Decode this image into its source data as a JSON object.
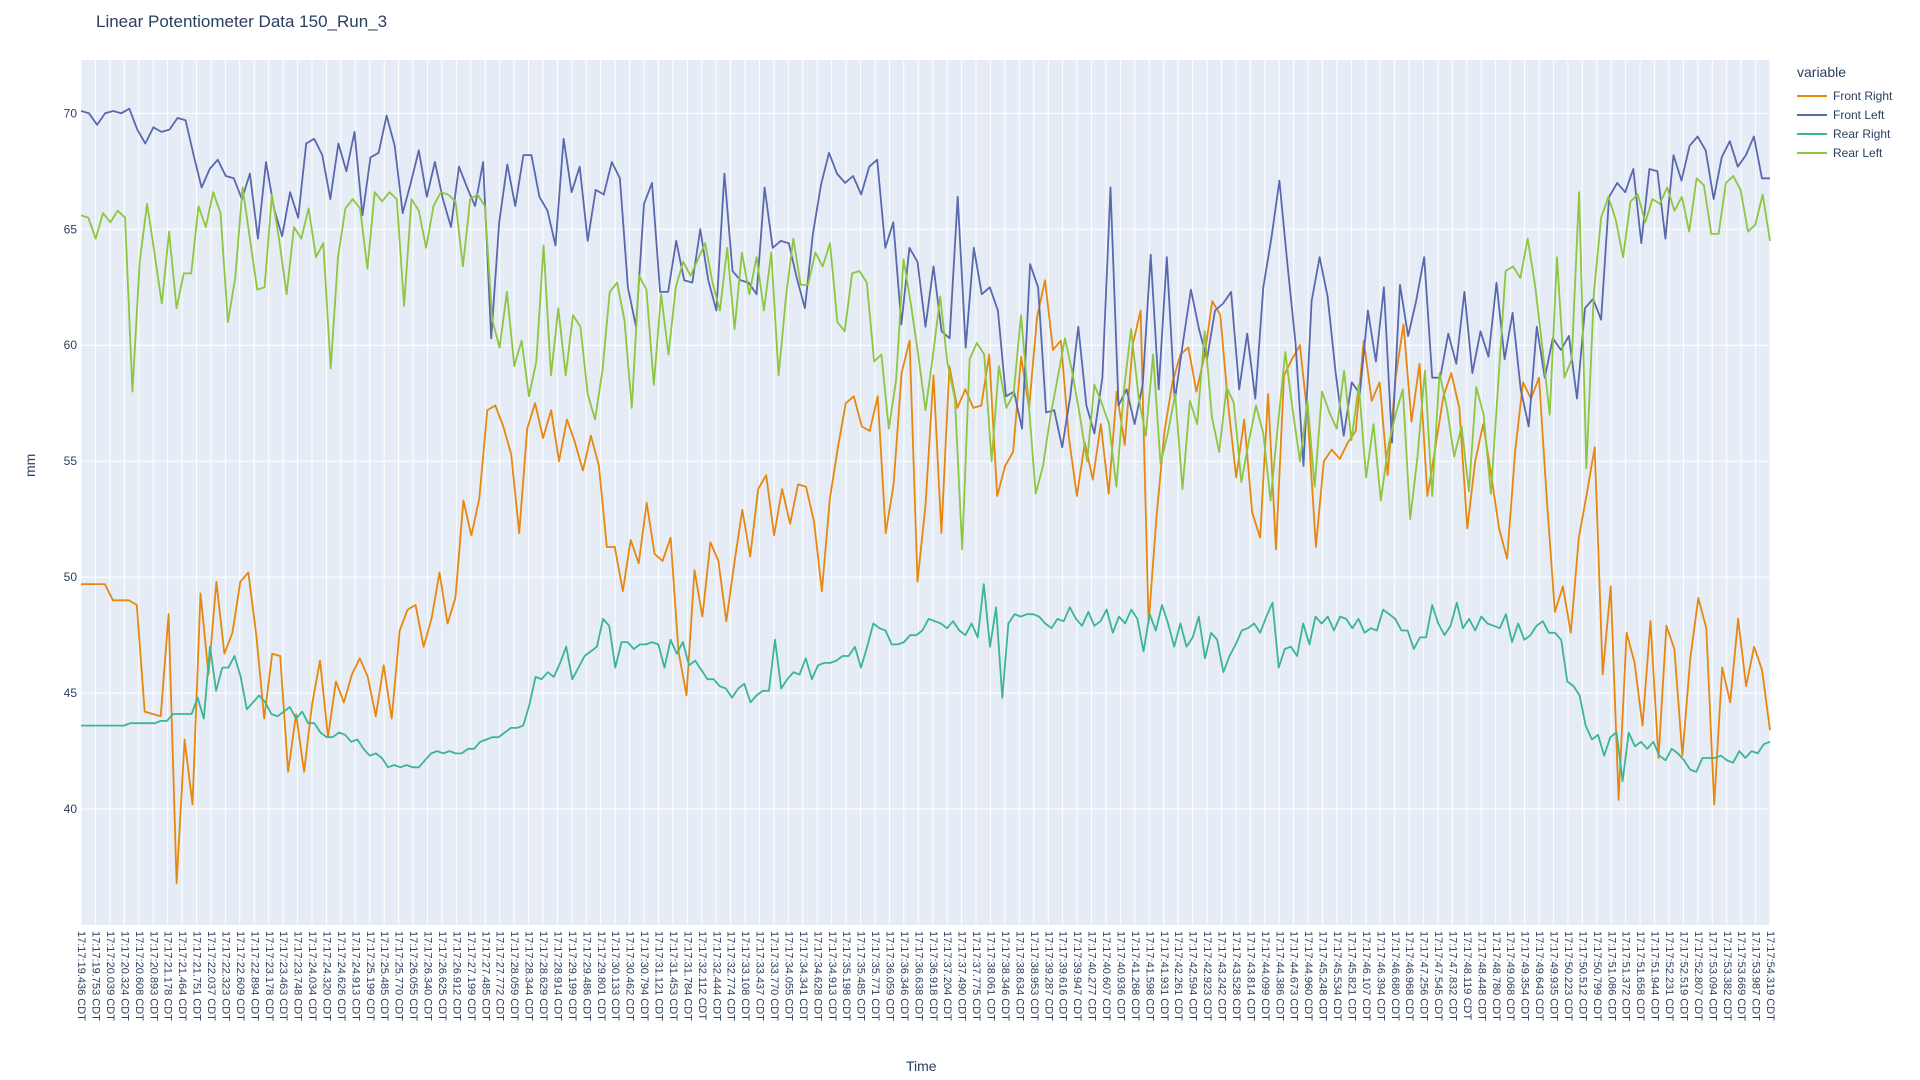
{
  "chart_data": {
    "type": "line",
    "title": "Linear Potentiometer Data 150_Run_3",
    "xlabel": "Time",
    "ylabel": "mm",
    "ylim": [
      35,
      72.3
    ],
    "yticks": [
      40,
      45,
      50,
      55,
      60,
      65,
      70
    ],
    "grid": true,
    "legend": {
      "title": "variable",
      "placement": "top-right, outside plot"
    },
    "x_tick_labels": [
      "17:17:19.436 CDT",
      "17:17:19.753 CDT",
      "17:17:20.039 CDT",
      "17:17:20.324 CDT",
      "17:17:20.608 CDT",
      "17:17:20.893 CDT",
      "17:17:21.178 CDT",
      "17:17:21.464 CDT",
      "17:17:21.751 CDT",
      "17:17:22.037 CDT",
      "17:17:22.323 CDT",
      "17:17:22.609 CDT",
      "17:17:22.894 CDT",
      "17:17:23.178 CDT",
      "17:17:23.463 CDT",
      "17:17:23.748 CDT",
      "17:17:24.034 CDT",
      "17:17:24.320 CDT",
      "17:17:24.626 CDT",
      "17:17:24.913 CDT",
      "17:17:25.199 CDT",
      "17:17:25.485 CDT",
      "17:17:25.770 CDT",
      "17:17:26.055 CDT",
      "17:17:26.340 CDT",
      "17:17:26.625 CDT",
      "17:17:26.912 CDT",
      "17:17:27.199 CDT",
      "17:17:27.485 CDT",
      "17:17:27.772 CDT",
      "17:17:28.059 CDT",
      "17:17:28.344 CDT",
      "17:17:28.629 CDT",
      "17:17:28.914 CDT",
      "17:17:29.199 CDT",
      "17:17:29.486 CDT",
      "17:17:29.801 CDT",
      "17:17:30.133 CDT",
      "17:17:30.462 CDT",
      "17:17:30.794 CDT",
      "17:17:31.121 CDT",
      "17:17:31.453 CDT",
      "17:17:31.784 CDT",
      "17:17:32.112 CDT",
      "17:17:32.444 CDT",
      "17:17:32.774 CDT",
      "17:17:33.108 CDT",
      "17:17:33.437 CDT",
      "17:17:33.770 CDT",
      "17:17:34.055 CDT",
      "17:17:34.341 CDT",
      "17:17:34.628 CDT",
      "17:17:34.913 CDT",
      "17:17:35.198 CDT",
      "17:17:35.485 CDT",
      "17:17:35.771 CDT",
      "17:17:36.059 CDT",
      "17:17:36.346 CDT",
      "17:17:36.638 CDT",
      "17:17:36.918 CDT",
      "17:17:37.204 CDT",
      "17:17:37.490 CDT",
      "17:17:37.775 CDT",
      "17:17:38.061 CDT",
      "17:17:38.346 CDT",
      "17:17:38.634 CDT",
      "17:17:38.953 CDT",
      "17:17:39.287 CDT",
      "17:17:39.616 CDT",
      "17:17:39.947 CDT",
      "17:17:40.277 CDT",
      "17:17:40.607 CDT",
      "17:17:40.936 CDT",
      "17:17:41.268 CDT",
      "17:17:41.598 CDT",
      "17:17:41.931 CDT",
      "17:17:42.261 CDT",
      "17:17:42.594 CDT",
      "17:17:42.923 CDT",
      "17:17:43.242 CDT",
      "17:17:43.528 CDT",
      "17:17:43.814 CDT",
      "17:17:44.099 CDT",
      "17:17:44.386 CDT",
      "17:17:44.673 CDT",
      "17:17:44.960 CDT",
      "17:17:45.248 CDT",
      "17:17:45.534 CDT",
      "17:17:45.821 CDT",
      "17:17:46.107 CDT",
      "17:17:46.394 CDT",
      "17:17:46.680 CDT",
      "17:17:46.968 CDT",
      "17:17:47.256 CDT",
      "17:17:47.545 CDT",
      "17:17:47.832 CDT",
      "17:17:48.119 CDT",
      "17:17:48.448 CDT",
      "17:17:48.780 CDT",
      "17:17:49.068 CDT",
      "17:17:49.354 CDT",
      "17:17:49.643 CDT",
      "17:17:49.935 CDT",
      "17:17:50.223 CDT",
      "17:17:50.512 CDT",
      "17:17:50.799 CDT",
      "17:17:51.086 CDT",
      "17:17:51.372 CDT",
      "17:17:51.658 CDT",
      "17:17:51.944 CDT",
      "17:17:52.231 CDT",
      "17:17:52.519 CDT",
      "17:17:52.807 CDT",
      "17:17:53.094 CDT",
      "17:17:53.382 CDT",
      "17:17:53.669 CDT",
      "17:17:53.987 CDT",
      "17:17:54.319 CDT"
    ],
    "series": [
      {
        "name": "Front Right",
        "color": "#e8870e",
        "values": [
          49.7,
          49.7,
          49.7,
          49.7,
          49.0,
          49.0,
          49.0,
          48.8,
          44.2,
          44.1,
          44.0,
          48.4,
          36.8,
          43.0,
          40.2,
          49.3,
          45.8,
          49.8,
          46.7,
          47.6,
          49.8,
          50.2,
          47.5,
          43.9,
          46.7,
          46.6,
          41.6,
          44.1,
          41.6,
          44.5,
          46.4,
          43.1,
          45.5,
          44.6,
          45.8,
          46.5,
          45.7,
          44.0,
          46.2,
          43.9,
          47.7,
          48.6,
          48.8,
          47.0,
          48.2,
          50.2,
          48.0,
          49.1,
          53.3,
          51.8,
          53.4,
          57.2,
          57.4,
          56.5,
          55.3,
          51.9,
          56.4,
          57.5,
          56.0,
          57.2,
          55.0,
          56.8,
          55.8,
          54.6,
          56.1,
          54.8,
          51.3,
          51.3,
          49.4,
          51.6,
          50.6,
          53.2,
          51.0,
          50.7,
          51.7,
          46.8,
          44.9,
          50.3,
          48.3,
          51.5,
          50.7,
          48.1,
          50.6,
          52.9,
          50.9,
          53.8,
          54.4,
          51.8,
          53.8,
          52.3,
          54.0,
          53.9,
          52.4,
          49.4,
          53.4,
          55.6,
          57.5,
          57.8,
          56.5,
          56.3,
          57.8,
          51.9,
          54.0,
          58.8,
          60.2,
          49.8,
          53.1,
          58.7,
          51.9,
          59.1,
          57.3,
          58.1,
          57.3,
          57.4,
          59.6,
          53.5,
          54.8,
          55.4,
          59.5,
          57.3,
          61.2,
          62.8,
          59.8,
          60.2,
          56.0,
          53.5,
          55.8,
          54.2,
          56.6,
          53.6,
          58.0,
          55.7,
          60.0,
          61.5,
          48.0,
          52.6,
          56.3,
          58.4,
          59.6,
          59.9,
          58.0,
          59.5,
          61.9,
          61.3,
          57.4,
          54.3,
          56.8,
          52.8,
          51.7,
          57.9,
          51.2,
          58.7,
          59.4,
          60.0,
          56.8,
          51.3,
          55.0,
          55.5,
          55.1,
          55.8,
          56.3,
          60.2,
          57.6,
          58.4,
          54.4,
          58.6,
          60.9,
          56.7,
          59.2,
          53.5,
          55.6,
          57.8,
          58.8,
          57.3,
          52.1,
          55.0,
          56.6,
          54.4,
          52.1,
          50.8,
          55.4,
          58.4,
          57.7,
          58.6,
          53.3,
          48.5,
          49.6,
          47.6,
          51.7,
          53.6,
          55.6,
          45.8,
          49.6,
          40.4,
          47.6,
          46.3,
          43.6,
          48.1,
          42.2,
          47.9,
          46.9,
          42.3,
          46.5,
          49.1,
          47.8,
          40.2,
          46.1,
          44.6,
          48.2,
          45.3,
          47.0,
          46.0,
          43.4
        ]
      },
      {
        "name": "Front Left",
        "color": "#5a68ad",
        "values": [
          70.1,
          70.0,
          69.5,
          70.0,
          70.1,
          70.0,
          70.2,
          69.3,
          68.7,
          69.4,
          69.2,
          69.3,
          69.8,
          69.7,
          68.2,
          66.8,
          67.6,
          68.0,
          67.3,
          67.2,
          66.3,
          67.4,
          64.6,
          67.9,
          65.9,
          64.7,
          66.6,
          65.5,
          68.7,
          68.9,
          68.2,
          66.3,
          68.7,
          67.5,
          69.2,
          65.6,
          68.1,
          68.3,
          69.9,
          68.6,
          65.7,
          67.0,
          68.4,
          66.4,
          67.9,
          66.3,
          65.1,
          67.7,
          66.8,
          66.0,
          67.9,
          60.3,
          65.3,
          67.8,
          66.0,
          68.2,
          68.2,
          66.4,
          65.8,
          64.3,
          68.9,
          66.6,
          67.7,
          64.5,
          66.7,
          66.5,
          67.9,
          67.2,
          62.5,
          60.8,
          66.1,
          67.0,
          62.3,
          62.3,
          64.5,
          62.8,
          62.7,
          65.0,
          62.8,
          61.5,
          67.4,
          63.2,
          62.8,
          62.7,
          62.2,
          66.8,
          64.2,
          64.5,
          64.4,
          62.9,
          61.6,
          64.8,
          66.9,
          68.3,
          67.4,
          67.0,
          67.3,
          66.5,
          67.7,
          68.0,
          64.2,
          65.3,
          60.9,
          64.2,
          63.6,
          60.8,
          63.4,
          60.6,
          60.3,
          66.4,
          59.9,
          64.2,
          62.2,
          62.5,
          61.5,
          57.8,
          58.0,
          56.4,
          63.5,
          62.5,
          57.1,
          57.2,
          55.6,
          57.8,
          60.8,
          57.4,
          56.2,
          58.6,
          66.8,
          57.4,
          58.1,
          56.6,
          58.3,
          63.9,
          58.1,
          63.8,
          57.6,
          60.1,
          62.4,
          60.7,
          59.4,
          61.5,
          61.8,
          62.3,
          58.1,
          60.5,
          57.7,
          62.5,
          64.6,
          67.1,
          63.5,
          60.1,
          54.8,
          61.9,
          63.8,
          62.1,
          58.8,
          56.1,
          58.4,
          57.9,
          61.5,
          59.3,
          62.5,
          55.8,
          62.6,
          60.4,
          61.9,
          63.8,
          58.6,
          58.6,
          60.5,
          59.2,
          62.3,
          58.8,
          60.6,
          59.5,
          62.7,
          59.4,
          61.4,
          58.1,
          56.5,
          60.8,
          58.6,
          60.3,
          59.8,
          60.4,
          57.7,
          61.6,
          62.0,
          61.1,
          66.4,
          67.0,
          66.6,
          67.6,
          64.4,
          67.6,
          67.5,
          64.6,
          68.2,
          67.1,
          68.6,
          69.0,
          68.4,
          66.3,
          68.1,
          68.8,
          67.7,
          68.2,
          69.0,
          67.2,
          67.2
        ]
      },
      {
        "name": "Rear Right",
        "color": "#3cb595",
        "values": [
          43.6,
          43.6,
          43.6,
          43.6,
          43.6,
          43.6,
          43.6,
          43.6,
          43.7,
          43.7,
          43.7,
          43.7,
          43.7,
          43.8,
          43.8,
          44.1,
          44.1,
          44.1,
          44.1,
          44.8,
          43.9,
          47.0,
          45.1,
          46.1,
          46.1,
          46.6,
          45.7,
          44.3,
          44.6,
          44.9,
          44.6,
          44.1,
          44.0,
          44.2,
          44.4,
          43.9,
          44.2,
          43.7,
          43.7,
          43.3,
          43.1,
          43.1,
          43.3,
          43.2,
          42.9,
          43.0,
          42.6,
          42.3,
          42.4,
          42.2,
          41.8,
          41.9,
          41.8,
          41.9,
          41.8,
          41.8,
          42.1,
          42.4,
          42.5,
          42.4,
          42.5,
          42.4,
          42.4,
          42.6,
          42.6,
          42.9,
          43.0,
          43.1,
          43.1,
          43.3,
          43.5,
          43.5,
          43.6,
          44.5,
          45.7,
          45.6,
          45.9,
          45.7,
          46.3,
          47.0,
          45.6,
          46.1,
          46.6,
          46.8,
          47.0,
          48.2,
          47.9,
          46.1,
          47.2,
          47.2,
          46.9,
          47.1,
          47.1,
          47.2,
          47.1,
          46.1,
          47.3,
          46.7,
          47.2,
          46.2,
          46.4,
          46.0,
          45.6,
          45.6,
          45.3,
          45.2,
          44.8,
          45.2,
          45.4,
          44.6,
          44.9,
          45.1,
          45.1,
          47.3,
          45.2,
          45.6,
          45.9,
          45.8,
          46.5,
          45.6,
          46.2,
          46.3,
          46.3,
          46.4,
          46.6,
          46.6,
          47.0,
          46.1,
          47.0,
          48.0,
          47.8,
          47.7,
          47.1,
          47.1,
          47.2,
          47.5,
          47.5,
          47.7,
          48.2,
          48.1,
          48.0,
          47.8,
          48.1,
          47.7,
          47.5,
          48.0,
          47.4,
          49.7,
          47.0,
          48.7,
          44.8,
          48.0,
          48.4,
          48.3,
          48.4,
          48.4,
          48.3,
          48.0,
          47.8,
          48.2,
          48.1,
          48.7,
          48.2,
          47.9,
          48.5,
          47.9,
          48.1,
          48.6,
          47.6,
          48.3,
          48.0,
          48.6,
          48.2,
          46.8,
          48.4,
          47.7,
          48.8,
          48.0,
          47.0,
          48.0,
          47.0,
          47.4,
          48.3,
          46.5,
          47.6,
          47.3,
          45.9,
          46.6,
          47.1,
          47.7,
          47.8,
          48.0,
          47.6,
          48.3,
          48.9,
          46.1,
          46.9,
          47.0,
          46.6,
          48.0,
          47.1,
          48.3,
          48.0,
          48.3,
          47.7,
          48.3,
          48.2,
          47.8,
          48.2,
          47.6,
          47.8,
          47.7,
          48.6,
          48.4,
          48.2,
          47.7,
          47.7,
          46.9,
          47.4,
          47.4,
          48.8,
          48.0,
          47.5,
          47.9,
          48.9,
          47.8,
          48.2,
          47.7,
          48.3,
          48.0,
          47.9,
          47.8,
          48.4,
          47.2,
          48.0,
          47.3,
          47.5,
          47.9,
          48.1,
          47.6,
          47.6,
          47.3,
          45.5,
          45.3,
          44.9,
          43.6,
          43.0,
          43.2,
          42.3,
          43.1,
          43.3,
          41.2,
          43.3,
          42.7,
          42.9,
          42.6,
          42.9,
          42.3,
          42.1,
          42.6,
          42.4,
          42.1,
          41.7,
          41.6,
          42.2,
          42.2,
          42.2,
          42.3,
          42.1,
          42.0,
          42.5,
          42.2,
          42.5,
          42.4,
          42.8,
          42.9
        ]
      },
      {
        "name": "Rear Left",
        "color": "#8dc63f",
        "values": [
          65.6,
          65.5,
          64.6,
          65.7,
          65.3,
          65.8,
          65.5,
          58.0,
          63.6,
          66.1,
          64.0,
          61.8,
          64.9,
          61.6,
          63.1,
          63.1,
          66.0,
          65.1,
          66.6,
          65.7,
          61.0,
          62.9,
          66.8,
          64.6,
          62.4,
          62.5,
          66.5,
          64.5,
          62.2,
          65.1,
          64.6,
          65.9,
          63.8,
          64.4,
          59.0,
          63.8,
          65.9,
          66.3,
          65.9,
          63.3,
          66.6,
          66.2,
          66.6,
          66.3,
          61.7,
          66.3,
          65.8,
          64.2,
          66.0,
          66.6,
          66.5,
          66.2,
          63.4,
          66.3,
          66.5,
          66.0,
          61.1,
          59.9,
          62.3,
          59.1,
          60.2,
          57.8,
          59.3,
          64.3,
          58.7,
          61.6,
          58.7,
          61.3,
          60.8,
          57.9,
          56.8,
          58.9,
          62.3,
          62.7,
          61.1,
          57.3,
          63.0,
          62.4,
          58.3,
          62.2,
          59.6,
          62.5,
          63.6,
          63.0,
          63.7,
          64.4,
          62.7,
          61.5,
          64.2,
          60.7,
          64.0,
          62.2,
          63.8,
          61.5,
          64.0,
          58.7,
          62.1,
          64.6,
          62.6,
          62.6,
          64.0,
          63.4,
          64.4,
          61.0,
          60.6,
          63.1,
          63.2,
          62.7,
          59.3,
          59.6,
          56.4,
          58.5,
          63.7,
          61.8,
          59.6,
          57.2,
          59.5,
          62.1,
          59.2,
          57.7,
          51.2,
          59.4,
          60.1,
          59.6,
          55.0,
          59.1,
          57.3,
          57.9,
          61.3,
          57.7,
          53.6,
          54.8,
          56.9,
          58.6,
          60.3,
          58.8,
          57.0,
          55.0,
          58.3,
          57.5,
          56.6,
          53.9,
          58.0,
          60.7,
          57.8,
          56.1,
          59.6,
          54.9,
          56.2,
          57.9,
          53.8,
          57.6,
          56.6,
          60.6,
          56.9,
          55.4,
          58.2,
          57.5,
          54.1,
          55.8,
          57.4,
          56.2,
          53.3,
          56.6,
          59.7,
          57.2,
          55.0,
          57.6,
          53.9,
          58.0,
          57.1,
          56.4,
          58.9,
          55.9,
          58.3,
          54.3,
          56.6,
          53.3,
          55.6,
          57.0,
          58.1,
          52.5,
          55.2,
          58.9,
          53.5,
          58.8,
          57.3,
          55.2,
          56.5,
          53.7,
          58.2,
          57.0,
          53.6,
          58.4,
          63.2,
          63.4,
          62.9,
          64.6,
          62.6,
          59.9,
          57.0,
          63.8,
          58.6,
          59.4,
          66.6,
          54.7,
          62.2,
          65.5,
          66.4,
          65.4,
          63.8,
          66.2,
          66.5,
          65.3,
          66.3,
          66.1,
          66.8,
          65.8,
          66.4,
          64.9,
          67.2,
          66.9,
          64.8,
          64.8,
          67.0,
          67.3,
          66.7,
          64.9,
          65.2,
          66.5,
          64.5
        ]
      }
    ]
  }
}
